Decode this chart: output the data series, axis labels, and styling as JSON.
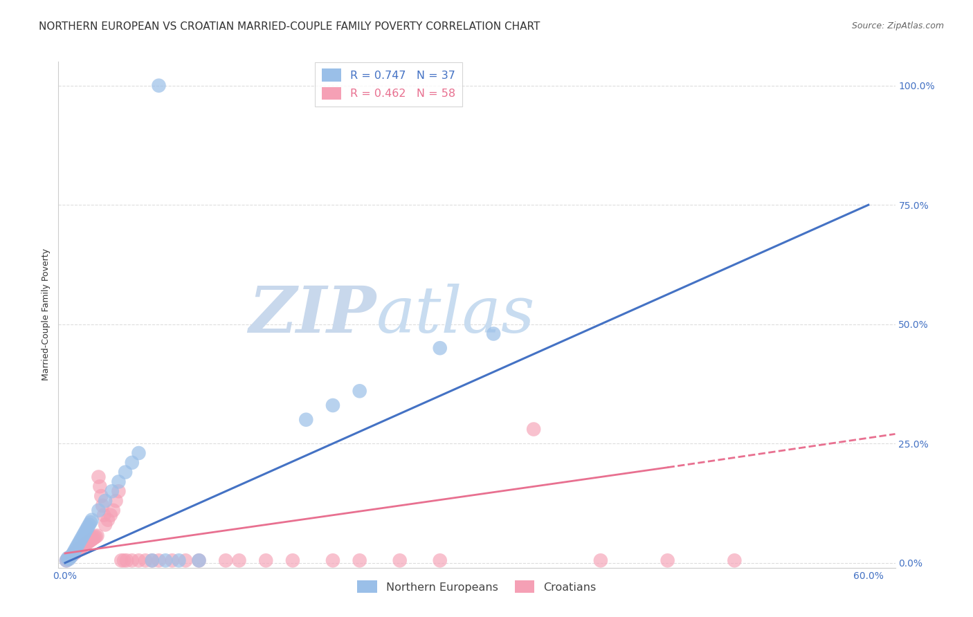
{
  "title": "NORTHERN EUROPEAN VS CROATIAN MARRIED-COUPLE FAMILY POVERTY CORRELATION CHART",
  "source": "Source: ZipAtlas.com",
  "ylabel": "Married-Couple Family Poverty",
  "xlim": [
    -0.005,
    0.62
  ],
  "ylim": [
    -0.01,
    1.05
  ],
  "xticks": [
    0.0,
    0.6
  ],
  "xticklabels": [
    "0.0%",
    "60.0%"
  ],
  "yticks": [
    0.0,
    0.25,
    0.5,
    0.75,
    1.0
  ],
  "yticklabels": [
    "0.0%",
    "25.0%",
    "50.0%",
    "75.0%",
    "100.0%"
  ],
  "blue_scatter_color": "#9ABFE8",
  "pink_scatter_color": "#F5A0B5",
  "blue_line_color": "#4472C4",
  "pink_line_color": "#E87090",
  "watermark_color": "#D5E8F5",
  "watermark_text": "ZIPatlas",
  "blue_points": [
    [
      0.001,
      0.005
    ],
    [
      0.002,
      0.01
    ],
    [
      0.003,
      0.008
    ],
    [
      0.004,
      0.012
    ],
    [
      0.005,
      0.015
    ],
    [
      0.006,
      0.02
    ],
    [
      0.007,
      0.025
    ],
    [
      0.008,
      0.03
    ],
    [
      0.009,
      0.035
    ],
    [
      0.01,
      0.04
    ],
    [
      0.011,
      0.045
    ],
    [
      0.012,
      0.05
    ],
    [
      0.013,
      0.055
    ],
    [
      0.014,
      0.06
    ],
    [
      0.015,
      0.065
    ],
    [
      0.016,
      0.07
    ],
    [
      0.017,
      0.075
    ],
    [
      0.018,
      0.08
    ],
    [
      0.019,
      0.085
    ],
    [
      0.02,
      0.09
    ],
    [
      0.025,
      0.11
    ],
    [
      0.03,
      0.13
    ],
    [
      0.035,
      0.15
    ],
    [
      0.04,
      0.17
    ],
    [
      0.045,
      0.19
    ],
    [
      0.05,
      0.21
    ],
    [
      0.055,
      0.23
    ],
    [
      0.065,
      0.005
    ],
    [
      0.075,
      0.005
    ],
    [
      0.085,
      0.005
    ],
    [
      0.1,
      0.005
    ],
    [
      0.07,
      1.0
    ],
    [
      0.18,
      0.3
    ],
    [
      0.2,
      0.33
    ],
    [
      0.22,
      0.36
    ],
    [
      0.28,
      0.45
    ],
    [
      0.32,
      0.48
    ]
  ],
  "pink_points": [
    [
      0.001,
      0.005
    ],
    [
      0.002,
      0.008
    ],
    [
      0.003,
      0.01
    ],
    [
      0.004,
      0.013
    ],
    [
      0.005,
      0.015
    ],
    [
      0.006,
      0.018
    ],
    [
      0.007,
      0.02
    ],
    [
      0.008,
      0.022
    ],
    [
      0.009,
      0.025
    ],
    [
      0.01,
      0.028
    ],
    [
      0.011,
      0.03
    ],
    [
      0.012,
      0.032
    ],
    [
      0.013,
      0.035
    ],
    [
      0.014,
      0.037
    ],
    [
      0.015,
      0.039
    ],
    [
      0.016,
      0.041
    ],
    [
      0.017,
      0.043
    ],
    [
      0.018,
      0.045
    ],
    [
      0.019,
      0.047
    ],
    [
      0.02,
      0.049
    ],
    [
      0.021,
      0.051
    ],
    [
      0.022,
      0.053
    ],
    [
      0.023,
      0.055
    ],
    [
      0.024,
      0.057
    ],
    [
      0.025,
      0.18
    ],
    [
      0.026,
      0.16
    ],
    [
      0.027,
      0.14
    ],
    [
      0.028,
      0.12
    ],
    [
      0.029,
      0.1
    ],
    [
      0.03,
      0.08
    ],
    [
      0.032,
      0.09
    ],
    [
      0.034,
      0.1
    ],
    [
      0.036,
      0.11
    ],
    [
      0.038,
      0.13
    ],
    [
      0.04,
      0.15
    ],
    [
      0.042,
      0.005
    ],
    [
      0.044,
      0.005
    ],
    [
      0.046,
      0.005
    ],
    [
      0.05,
      0.005
    ],
    [
      0.055,
      0.005
    ],
    [
      0.06,
      0.005
    ],
    [
      0.065,
      0.005
    ],
    [
      0.07,
      0.005
    ],
    [
      0.08,
      0.005
    ],
    [
      0.09,
      0.005
    ],
    [
      0.1,
      0.005
    ],
    [
      0.12,
      0.005
    ],
    [
      0.13,
      0.005
    ],
    [
      0.15,
      0.005
    ],
    [
      0.17,
      0.005
    ],
    [
      0.2,
      0.005
    ],
    [
      0.22,
      0.005
    ],
    [
      0.25,
      0.005
    ],
    [
      0.28,
      0.005
    ],
    [
      0.35,
      0.28
    ],
    [
      0.4,
      0.005
    ],
    [
      0.45,
      0.005
    ],
    [
      0.5,
      0.005
    ]
  ],
  "blue_line": [
    [
      0.0,
      0.0
    ],
    [
      0.6,
      0.75
    ]
  ],
  "pink_line_solid": [
    [
      0.0,
      0.02
    ],
    [
      0.45,
      0.2
    ]
  ],
  "pink_line_dashed": [
    [
      0.45,
      0.2
    ],
    [
      0.62,
      0.27
    ]
  ],
  "background_color": "#FFFFFF",
  "grid_color": "#DDDDDD",
  "title_fontsize": 11,
  "axis_label_fontsize": 9,
  "tick_fontsize": 10,
  "legend_blue_label": "R = 0.747   N = 37",
  "legend_pink_label": "R = 0.462   N = 58",
  "legend_bottom_blue": "Northern Europeans",
  "legend_bottom_pink": "Croatians"
}
